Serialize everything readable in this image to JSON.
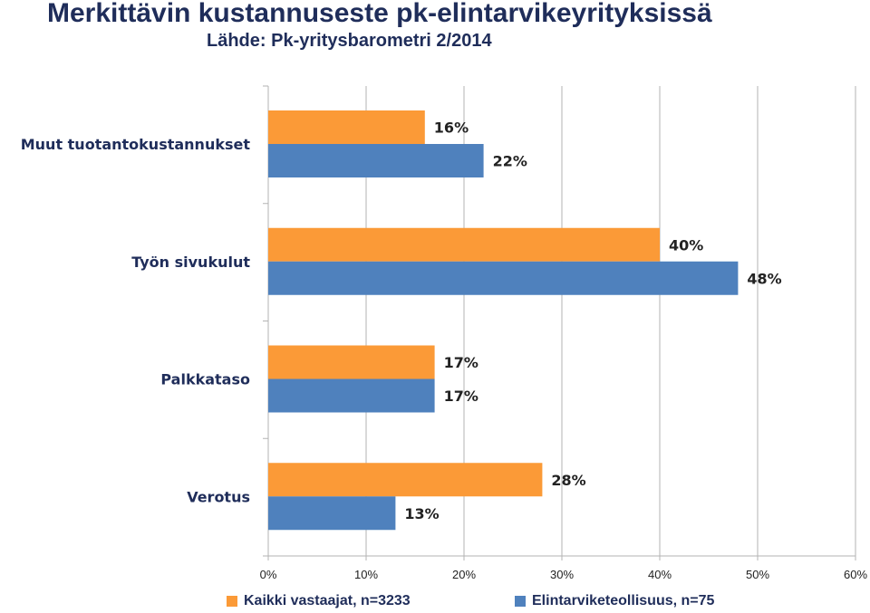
{
  "header": {
    "title": "Merkittävin kustannuseste pk-elintarvikeyrityksissä",
    "subtitle": "Lähde: Pk-yritysbarometri 2/2014"
  },
  "colors": {
    "series_all": "#fb9a37",
    "series_food": "#4f81bd",
    "grid": "#b3b3b3",
    "text": "#1f2d5a"
  },
  "chart_data": {
    "type": "bar",
    "orientation": "horizontal",
    "title": "Merkittävin kustannuseste pk-elintarvikeyrityksissä",
    "subtitle": "Lähde: Pk-yritysbarometri 2/2014",
    "categories": [
      "Muut tuotantokustannukset",
      "Työn sivukulut",
      "Palkkataso",
      "Verotus"
    ],
    "series": [
      {
        "name": "Kaikki vastaajat, n=3233",
        "values": [
          16,
          40,
          17,
          28
        ],
        "labels": [
          "16%",
          "40%",
          "17%",
          "28%"
        ]
      },
      {
        "name": "Elintarviketeollisuus, n=75",
        "values": [
          22,
          48,
          17,
          13
        ],
        "labels": [
          "22%",
          "48%",
          "17%",
          "13%"
        ]
      }
    ],
    "xlim": [
      0,
      60
    ],
    "xticks": [
      "0%",
      "10%",
      "20%",
      "30%",
      "40%",
      "50%",
      "60%"
    ],
    "unit": "%",
    "grid": true,
    "legend": "bottom"
  }
}
